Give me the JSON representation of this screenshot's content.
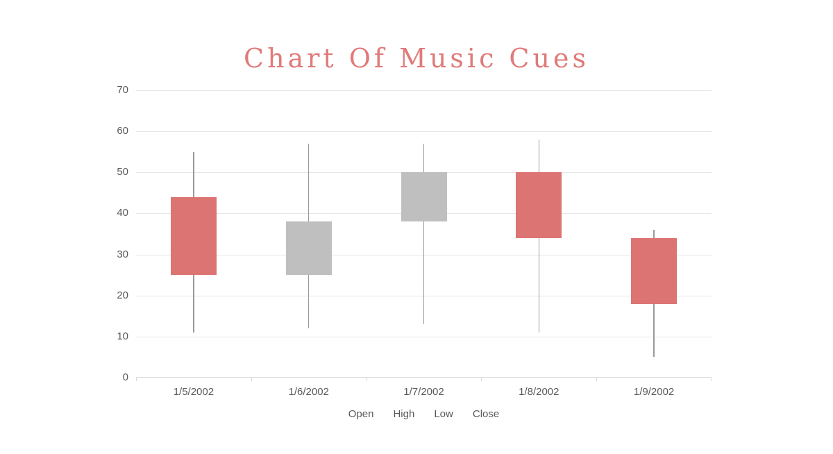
{
  "title": "Chart Of Music Cues",
  "chart_data": {
    "type": "candlestick",
    "title": "Chart Of Music Cues",
    "categories": [
      "1/5/2002",
      "1/6/2002",
      "1/7/2002",
      "1/8/2002",
      "1/9/2002"
    ],
    "series": [
      {
        "name": "Open",
        "values": [
          44,
          25,
          38,
          50,
          34
        ]
      },
      {
        "name": "High",
        "values": [
          55,
          57,
          57,
          58,
          36
        ]
      },
      {
        "name": "Low",
        "values": [
          11,
          12,
          13,
          11,
          5
        ]
      },
      {
        "name": "Close",
        "values": [
          25,
          38,
          50,
          34,
          18
        ]
      }
    ],
    "ylim": [
      0,
      70
    ],
    "ytick_step": 10,
    "ytick_labels": [
      "0",
      "10",
      "20",
      "30",
      "40",
      "50",
      "60",
      "70"
    ],
    "grid": true,
    "legend_position": "bottom",
    "legend_labels": [
      "Open",
      "High",
      "Low",
      "Close"
    ],
    "colors": {
      "title": "#E07A7A",
      "down_fill": "#DD7474",
      "up_fill": "#BFBFBF",
      "wick": "#999999",
      "gridline": "#E6E6E6",
      "axis_line": "#D9D9D9",
      "tick_text": "#595959",
      "background": "#FFFFFF"
    }
  }
}
